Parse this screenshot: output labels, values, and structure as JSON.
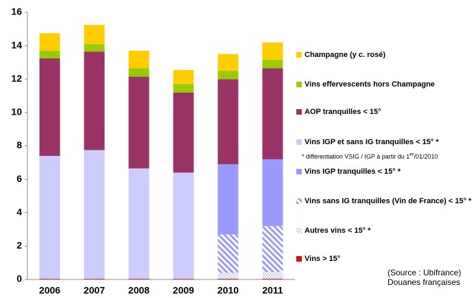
{
  "chart_data": {
    "type": "stacked_bar",
    "categories": [
      "2006",
      "2007",
      "2008",
      "2009",
      "2010",
      "2011"
    ],
    "ylim": [
      0,
      16
    ],
    "yticks": [
      0,
      2,
      4,
      6,
      8,
      10,
      12,
      14,
      16
    ],
    "series": [
      {
        "name": "Champagne (y c. rosé)",
        "color": "#ffcc00",
        "values": [
          1.05,
          1.15,
          1.05,
          0.85,
          1.0,
          1.05
        ]
      },
      {
        "name": "Vins effervescents hors Champagne",
        "color": "#99cc00",
        "values": [
          0.45,
          0.45,
          0.5,
          0.5,
          0.5,
          0.5
        ]
      },
      {
        "name": "AOP tranquilles < 15°",
        "color": "#993366",
        "values": [
          5.85,
          5.9,
          5.5,
          4.8,
          5.1,
          5.45
        ]
      },
      {
        "name": "Vins IGP et sans IG tranquilles < 15° *",
        "color": "#ccccff",
        "values": [
          7.35,
          7.7,
          6.6,
          6.35,
          null,
          null
        ]
      },
      {
        "name": "Vins IGP tranquilles < 15° *",
        "color": "#9999ff",
        "values": [
          null,
          null,
          null,
          null,
          4.2,
          4.0
        ]
      },
      {
        "name": "Vins sans IG tranquilles (Vin de France) < 15° *",
        "color": "#9999ff",
        "pattern": "hatch",
        "values": [
          null,
          null,
          null,
          null,
          2.3,
          2.75
        ]
      },
      {
        "name": "Autres vins < 15° *",
        "color": "#ccccff",
        "pattern": "dots",
        "values": [
          null,
          null,
          null,
          null,
          0.35,
          0.4
        ]
      },
      {
        "name": "Vins > 15°",
        "color": "#ff0000",
        "values": [
          0.05,
          0.05,
          0.05,
          0.05,
          0.05,
          0.05
        ]
      }
    ],
    "legend_note": [
      "* différentiation VSIG / IGP à partir du 1",
      "er",
      "/01/2010"
    ],
    "source": [
      "(Source : Ubifrance)",
      "Douanes françaises"
    ]
  }
}
